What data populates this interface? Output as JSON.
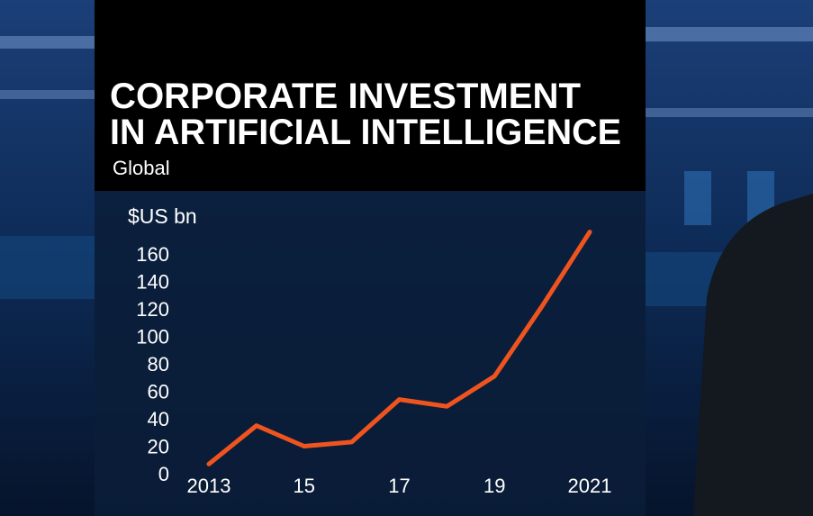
{
  "chart_data": {
    "type": "line",
    "title": [
      "CORPORATE INVESTMENT",
      "IN ARTIFICIAL INTELLIGENCE"
    ],
    "subtitle": "Global",
    "y_label": "$US bn",
    "x": [
      2013,
      2014,
      2015,
      2016,
      2017,
      2018,
      2019,
      2020,
      2021
    ],
    "series": [
      {
        "color": "#f0541e",
        "values": [
          7,
          35,
          20,
          23,
          54,
          49,
          71,
          122,
          176
        ]
      }
    ],
    "xlim": [
      2013,
      2021
    ],
    "xticks": [
      2013,
      {
        "value": 2015,
        "label": "15"
      },
      {
        "value": 2017,
        "label": "17"
      },
      {
        "value": 2019,
        "label": "19"
      },
      2021
    ],
    "ylim": [
      0,
      180
    ],
    "yticks": [
      0,
      20,
      40,
      60,
      80,
      100,
      120,
      140,
      160
    ],
    "grid": false
  }
}
